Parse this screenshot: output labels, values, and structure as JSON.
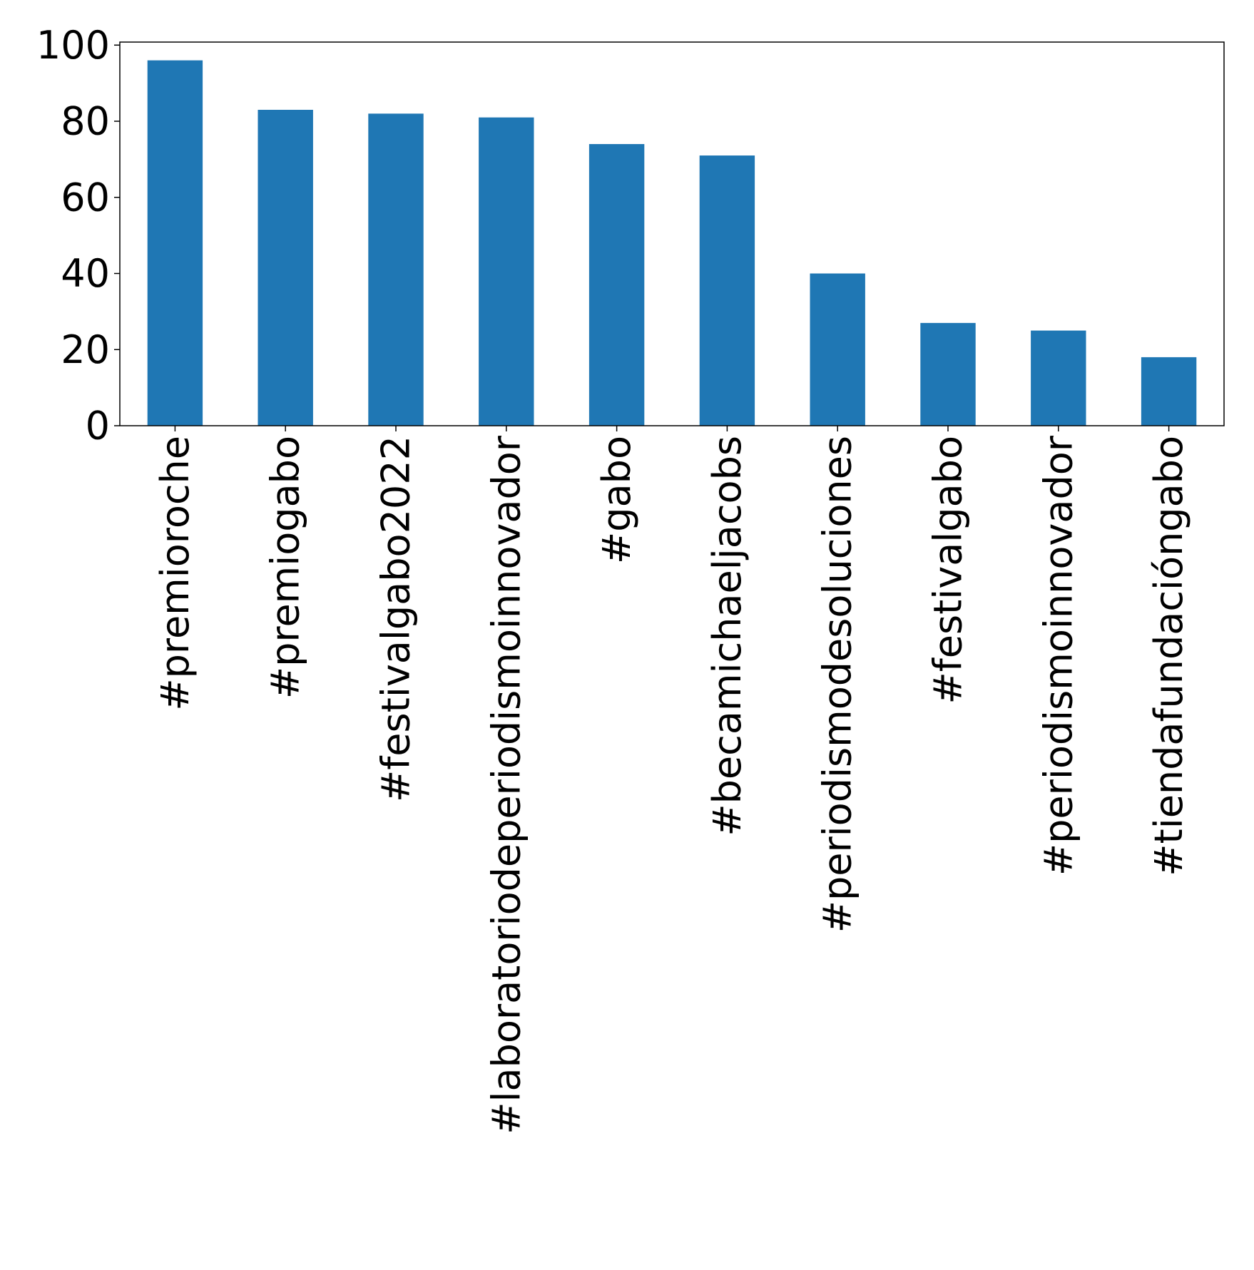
{
  "chart_data": {
    "type": "bar",
    "categories": [
      "#premioroche",
      "#premiogabo",
      "#festivalgabo2022",
      "#laboratoriodeperiodismoinnovador",
      "#gabo",
      "#becamichaeljacobs",
      "#periodismodesoluciones",
      "#festivalgabo",
      "#periodismoinnovador",
      "#tiendafundacióngabo"
    ],
    "values": [
      96,
      83,
      82,
      81,
      74,
      71,
      40,
      27,
      25,
      18
    ],
    "yticks": [
      "0",
      "20",
      "40",
      "60",
      "80",
      "100"
    ],
    "ylim": [
      0,
      100.8
    ],
    "title": "",
    "xlabel": "",
    "ylabel": "",
    "grid": false,
    "legend": "none",
    "bar_color": "#1f77b4"
  }
}
